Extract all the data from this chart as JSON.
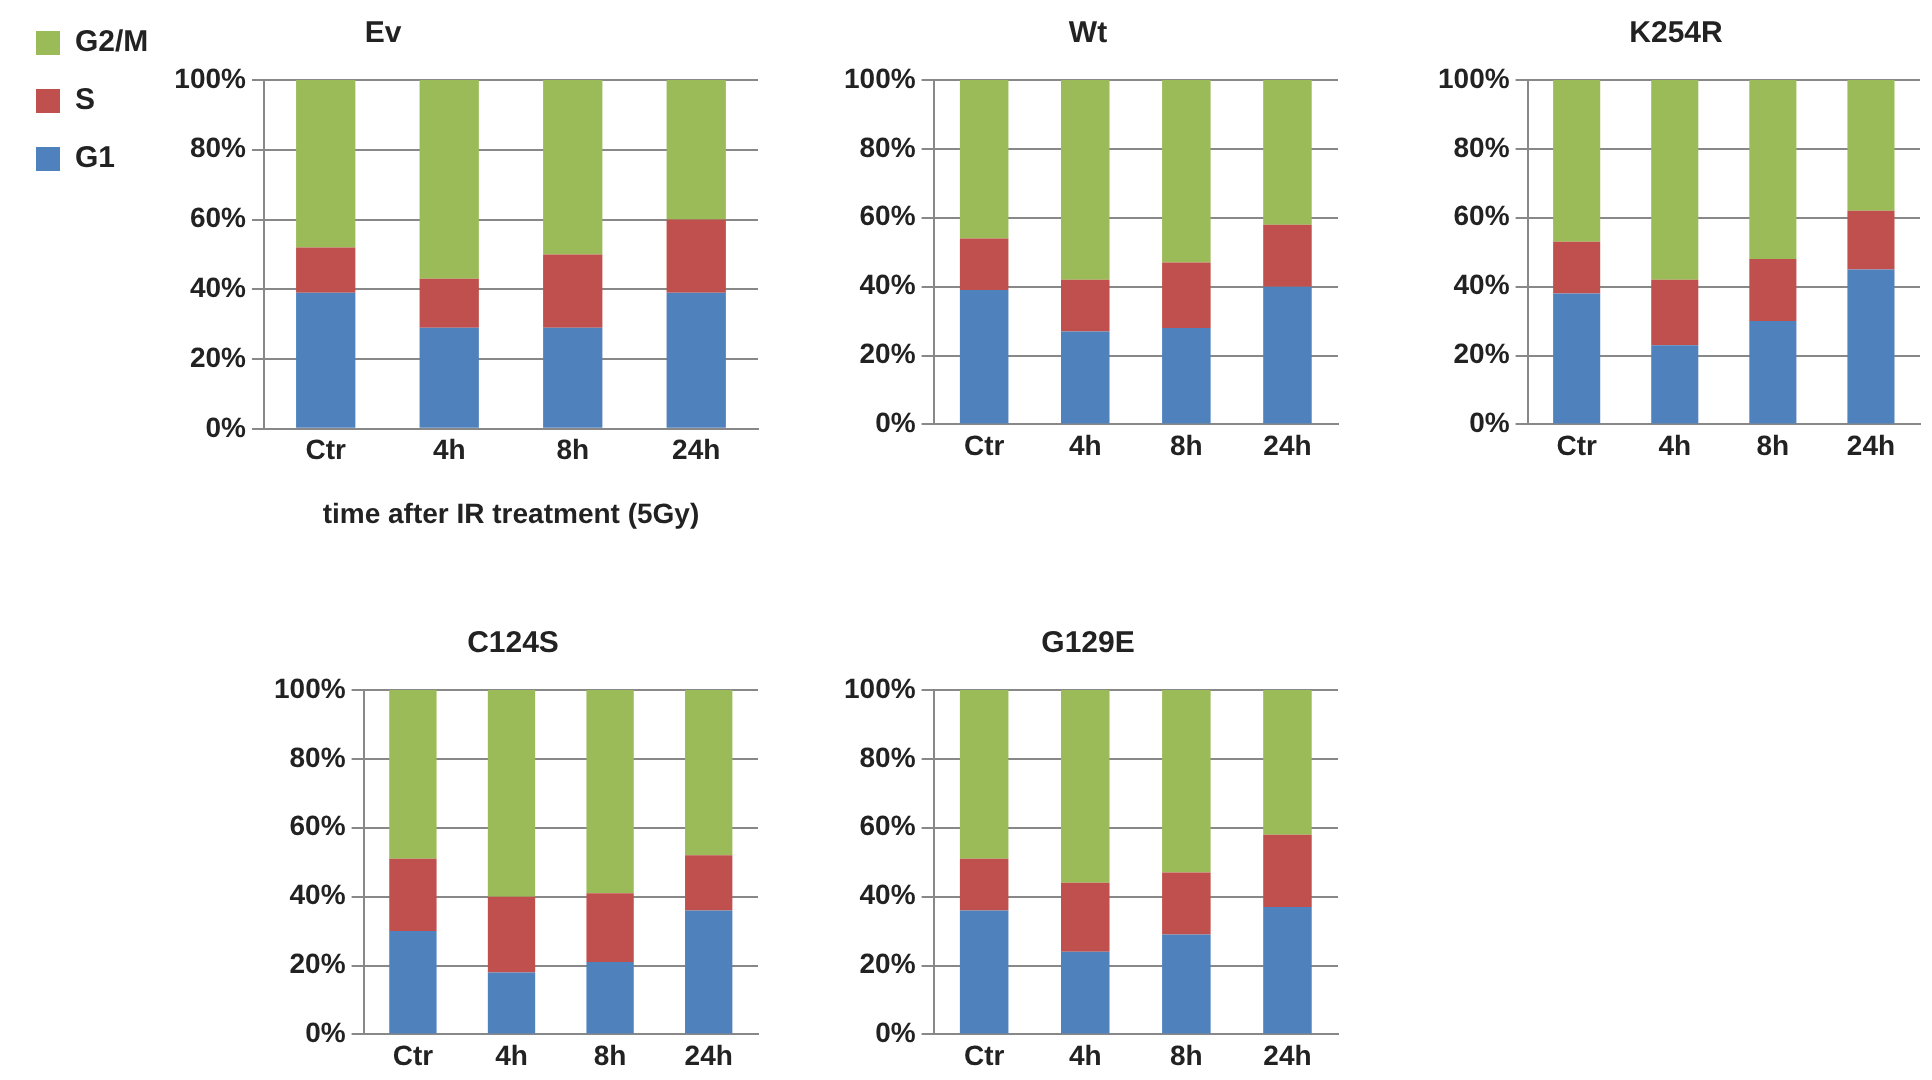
{
  "chart_data": [
    {
      "type": "bar",
      "title": "Ev",
      "xlabel": "time after IR treatment (5Gy)",
      "categories": [
        "Ctr",
        "4h",
        "8h",
        "24h"
      ],
      "stacked": true,
      "legend": "left",
      "grid": "y",
      "ylim": [
        0,
        100
      ],
      "yticks": [
        {
          "value": 0,
          "label": "0%"
        },
        {
          "value": 20,
          "label": "20%"
        },
        {
          "value": 40,
          "label": "40%"
        },
        {
          "value": 60,
          "label": "60%"
        },
        {
          "value": 80,
          "label": "80%"
        },
        {
          "value": 100,
          "label": "100%"
        }
      ],
      "series": [
        {
          "name": "G1",
          "color": "#4f81bd",
          "values": [
            39,
            29,
            29,
            39
          ]
        },
        {
          "name": "S",
          "color": "#c0504d",
          "values": [
            13,
            14,
            21,
            21
          ]
        },
        {
          "name": "G2/M",
          "color": "#9bbb59",
          "values": [
            48,
            57,
            50,
            40
          ]
        }
      ]
    },
    {
      "type": "bar",
      "title": "Wt",
      "categories": [
        "Ctr",
        "4h",
        "8h",
        "24h"
      ],
      "stacked": true,
      "grid": "y",
      "ylim": [
        0,
        100
      ],
      "yticks": [
        {
          "value": 0,
          "label": "0%"
        },
        {
          "value": 20,
          "label": "20%"
        },
        {
          "value": 40,
          "label": "40%"
        },
        {
          "value": 60,
          "label": "60%"
        },
        {
          "value": 80,
          "label": "80%"
        },
        {
          "value": 100,
          "label": "100%"
        }
      ],
      "series": [
        {
          "color": "#4f81bd",
          "values": [
            39,
            27,
            28,
            40
          ]
        },
        {
          "color": "#c0504d",
          "values": [
            15,
            15,
            19,
            18
          ]
        },
        {
          "color": "#9bbb59",
          "values": [
            46,
            58,
            53,
            42
          ]
        }
      ]
    },
    {
      "type": "bar",
      "title": "K254R",
      "categories": [
        "Ctr",
        "4h",
        "8h",
        "24h"
      ],
      "stacked": true,
      "grid": "y",
      "ylim": [
        0,
        100
      ],
      "yticks": [
        {
          "value": 0,
          "label": "0%"
        },
        {
          "value": 20,
          "label": "20%"
        },
        {
          "value": 40,
          "label": "40%"
        },
        {
          "value": 60,
          "label": "60%"
        },
        {
          "value": 80,
          "label": "80%"
        },
        {
          "value": 100,
          "label": "100%"
        }
      ],
      "series": [
        {
          "color": "#4f81bd",
          "values": [
            38,
            23,
            30,
            45
          ]
        },
        {
          "color": "#c0504d",
          "values": [
            15,
            19,
            18,
            17
          ]
        },
        {
          "color": "#9bbb59",
          "values": [
            47,
            58,
            52,
            38
          ]
        }
      ]
    },
    {
      "type": "bar",
      "title": "C124S",
      "categories": [
        "Ctr",
        "4h",
        "8h",
        "24h"
      ],
      "stacked": true,
      "grid": "y",
      "ylim": [
        0,
        100
      ],
      "yticks": [
        {
          "value": 0,
          "label": "0%"
        },
        {
          "value": 20,
          "label": "20%"
        },
        {
          "value": 40,
          "label": "40%"
        },
        {
          "value": 60,
          "label": "60%"
        },
        {
          "value": 80,
          "label": "80%"
        },
        {
          "value": 100,
          "label": "100%"
        }
      ],
      "series": [
        {
          "color": "#4f81bd",
          "values": [
            30,
            18,
            21,
            36
          ]
        },
        {
          "color": "#c0504d",
          "values": [
            21,
            22,
            20,
            16
          ]
        },
        {
          "color": "#9bbb59",
          "values": [
            49,
            60,
            59,
            48
          ]
        }
      ]
    },
    {
      "type": "bar",
      "title": "G129E",
      "categories": [
        "Ctr",
        "4h",
        "8h",
        "24h"
      ],
      "stacked": true,
      "grid": "y",
      "ylim": [
        0,
        100
      ],
      "yticks": [
        {
          "value": 0,
          "label": "0%"
        },
        {
          "value": 20,
          "label": "20%"
        },
        {
          "value": 40,
          "label": "40%"
        },
        {
          "value": 60,
          "label": "60%"
        },
        {
          "value": 80,
          "label": "80%"
        },
        {
          "value": 100,
          "label": "100%"
        }
      ],
      "series": [
        {
          "color": "#4f81bd",
          "values": [
            36,
            24,
            29,
            37
          ]
        },
        {
          "color": "#c0504d",
          "values": [
            15,
            20,
            18,
            21
          ]
        },
        {
          "color": "#9bbb59",
          "values": [
            49,
            56,
            53,
            42
          ]
        }
      ]
    }
  ]
}
